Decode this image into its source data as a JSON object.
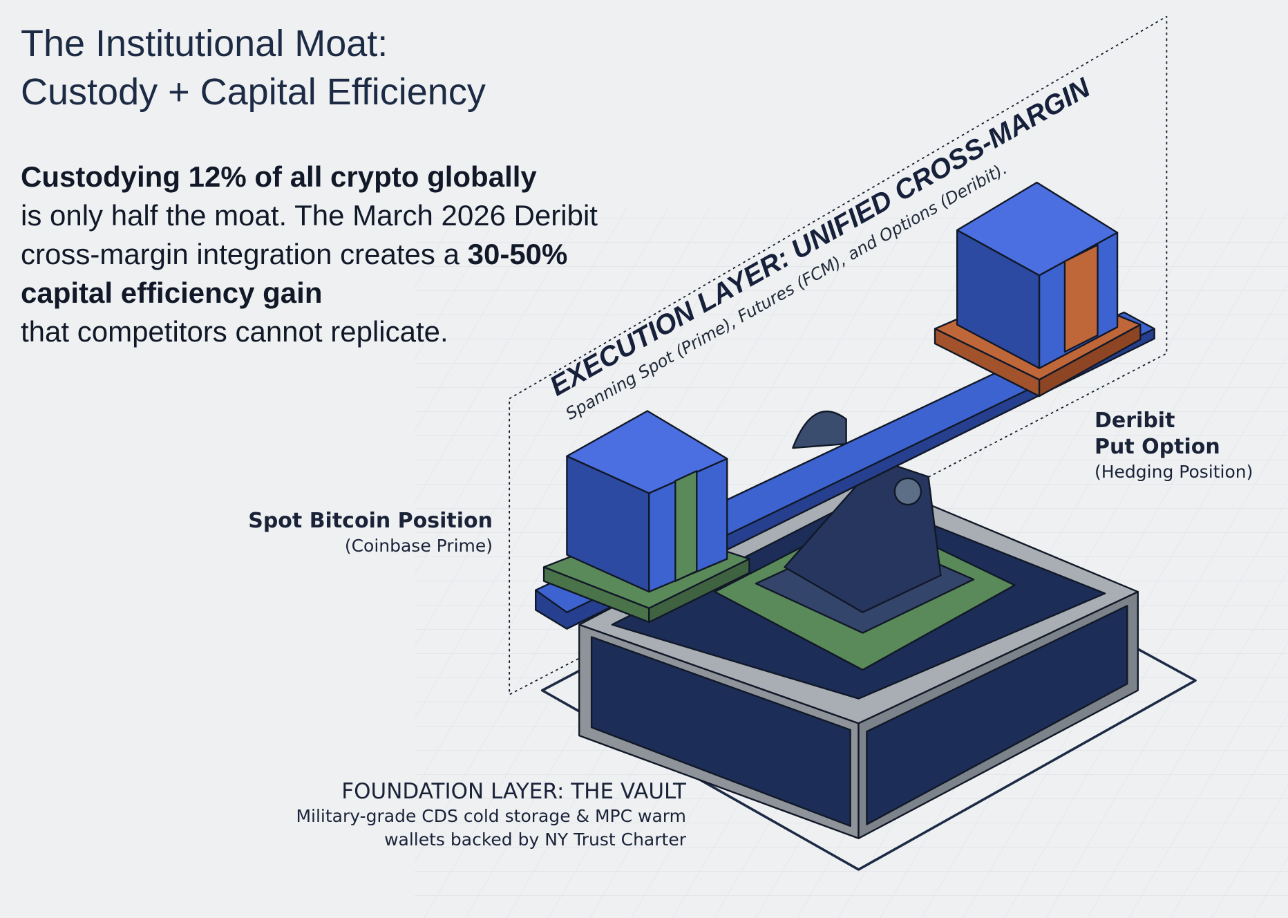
{
  "title": {
    "line1": "The Institutional Moat:",
    "line2": "Custody + Capital Efficiency"
  },
  "intro": {
    "bold1": "Custodying 12% of all crypto globally",
    "text1": "is only half the moat. The March 2026 Deribit cross-margin integration creates a ",
    "bold2": "30-50% capital efficiency gain",
    "text2": "that competitors cannot replicate."
  },
  "execution_layer": {
    "heading": "EXECUTION LAYER:  UNIFIED CROSS-MARGIN",
    "subtitle": "Spanning Spot (Prime), Futures (FCM), and Options (Deribit)."
  },
  "spot_position": {
    "heading": "Spot Bitcoin Position",
    "subtitle": "(Coinbase Prime)"
  },
  "deribit_position": {
    "heading_line1": "Deribit",
    "heading_line2": "Put Option",
    "subtitle": "(Hedging Position)"
  },
  "foundation_layer": {
    "heading": "FOUNDATION LAYER: THE VAULT",
    "line1": "Military-grade CDS cold storage & MPC warm",
    "line2": "wallets backed by NY Trust Charter"
  },
  "colors": {
    "blue": "#3d63d0",
    "navy": "#1c2d57",
    "green": "#5b8a5a",
    "orange": "#c0673a",
    "steel": "#8a8f96"
  }
}
